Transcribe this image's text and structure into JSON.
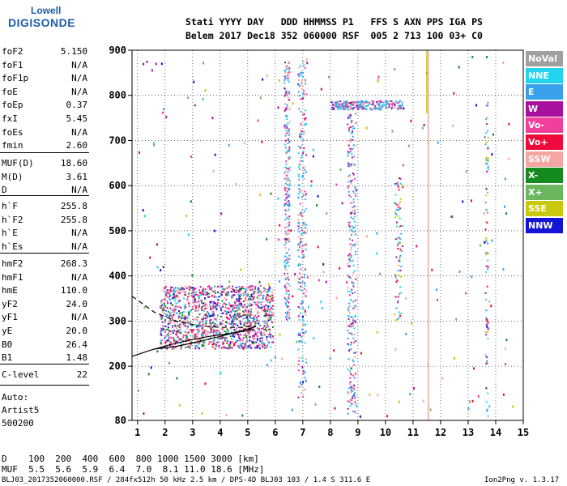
{
  "logo": {
    "line1": "Lowell",
    "line2": "DIGISONDE"
  },
  "header": {
    "line1": "Stati YYYY DAY   DDD HHMMSS P1   FFS S AXN PPS IGA PS",
    "line2": "Belem 2017 Dec18 352 060000 RSF  005 2 713 100 03+ C0"
  },
  "params_group1": [
    {
      "name": "foF2",
      "value": "5.150"
    },
    {
      "name": "foF1",
      "value": "N/A"
    },
    {
      "name": "foF1p",
      "value": "N/A"
    },
    {
      "name": "foE",
      "value": "N/A"
    },
    {
      "name": "foEp",
      "value": "0.37"
    },
    {
      "name": "fxI",
      "value": "5.45"
    },
    {
      "name": "foEs",
      "value": "N/A"
    },
    {
      "name": "fmin",
      "value": "2.60"
    }
  ],
  "params_group2": [
    {
      "name": "MUF(D)",
      "value": "18.60"
    },
    {
      "name": "M(D)",
      "value": "3.61"
    },
    {
      "name": "D",
      "value": "N/A"
    }
  ],
  "params_group3": [
    {
      "name": "h`F",
      "value": "255.8"
    },
    {
      "name": "h`F2",
      "value": "255.8"
    },
    {
      "name": "h`E",
      "value": "N/A"
    },
    {
      "name": "h`Es",
      "value": "N/A"
    }
  ],
  "params_group4": [
    {
      "name": "hmF2",
      "value": "268.3"
    },
    {
      "name": "hmF1",
      "value": "N/A"
    },
    {
      "name": "hmE",
      "value": "110.0"
    },
    {
      "name": "yF2",
      "value": "24.0"
    },
    {
      "name": "yF1",
      "value": "N/A"
    },
    {
      "name": "yE",
      "value": "20.0"
    },
    {
      "name": "B0",
      "value": "26.4"
    },
    {
      "name": "B1",
      "value": "1.48"
    }
  ],
  "params_group5": [
    {
      "name": "C-level",
      "value": "22"
    }
  ],
  "info": {
    "line1": "Auto:",
    "line2": "Artist5",
    "line3": "500200"
  },
  "legend": [
    {
      "label": "NoVal",
      "color": "#a0a0a0"
    },
    {
      "label": "NNE",
      "color": "#22d3f0"
    },
    {
      "label": "E",
      "color": "#3aa0ee"
    },
    {
      "label": "W",
      "color": "#a8109e"
    },
    {
      "label": "Vo-",
      "color": "#f0409c"
    },
    {
      "label": "Vo+",
      "color": "#f00a3c"
    },
    {
      "label": "SSW",
      "color": "#f4a6a0"
    },
    {
      "label": "X-",
      "color": "#158a20"
    },
    {
      "label": "X+",
      "color": "#6cb660"
    },
    {
      "label": "SSE",
      "color": "#c8c80e"
    },
    {
      "label": "NNW",
      "color": "#1414d4"
    }
  ],
  "bottom": {
    "d_line": "D    100  200  400  600  800 1000 1500 3000 [km]",
    "muf_line": "MUF  5.5  5.6  5.9  6.4  7.0  8.1 11.0 18.6 [MHz]"
  },
  "footer": {
    "left": "BLJ03_2017352060000.RSF / 284fx512h 50 kHz 2.5 km / DPS-4D BLJ03 103 / 1.4 S 311.6 E",
    "right": "Ion2Png v. 1.3.17"
  },
  "chart_data": {
    "type": "scatter",
    "title": "",
    "xlabel": "",
    "ylabel": "",
    "xlim": [
      0.8,
      15
    ],
    "ylim": [
      80,
      900
    ],
    "x_ticks": [
      1,
      2,
      3,
      4,
      5,
      6,
      7,
      8,
      9,
      10,
      11,
      12,
      13,
      14,
      15
    ],
    "y_ticks": [
      80,
      200,
      300,
      400,
      500,
      600,
      700,
      800,
      900
    ],
    "grid": true,
    "traces": [
      {
        "name": "",
        "style": "solid",
        "x": [
          0.8,
          1.5,
          2.2,
          2.9,
          3.6,
          4.3,
          4.9,
          5.2
        ],
        "y": [
          222,
          236,
          248,
          258,
          266,
          272,
          278,
          282
        ]
      },
      {
        "name": "",
        "style": "solid",
        "x": [
          1.6,
          2.4,
          3.2,
          4.0,
          4.7,
          5.3
        ],
        "y": [
          238,
          244,
          254,
          266,
          277,
          288
        ]
      },
      {
        "name": "",
        "style": "dashed",
        "x": [
          0.8,
          1.6,
          2.4,
          3.2,
          4.0,
          4.8,
          5.3
        ],
        "y": [
          355,
          320,
          300,
          290,
          286,
          286,
          290
        ]
      }
    ],
    "echo_regions": [
      {
        "x": [
          1.8,
          5.9
        ],
        "y": [
          240,
          380
        ],
        "density": "high"
      },
      {
        "x": [
          8.6,
          8.9
        ],
        "y": [
          95,
          770
        ],
        "density": "medium"
      },
      {
        "x": [
          6.8,
          7.1
        ],
        "y": [
          130,
          880
        ],
        "density": "medium"
      },
      {
        "x": [
          6.3,
          6.5
        ],
        "y": [
          300,
          880
        ],
        "density": "medium"
      },
      {
        "x": [
          8.0,
          10.6
        ],
        "y": [
          770,
          790
        ],
        "density": "medium"
      },
      {
        "x": [
          10.3,
          10.6
        ],
        "y": [
          300,
          620
        ],
        "density": "low"
      },
      {
        "x": [
          13.6,
          13.7
        ],
        "y": [
          90,
          790
        ],
        "density": "low"
      }
    ]
  }
}
